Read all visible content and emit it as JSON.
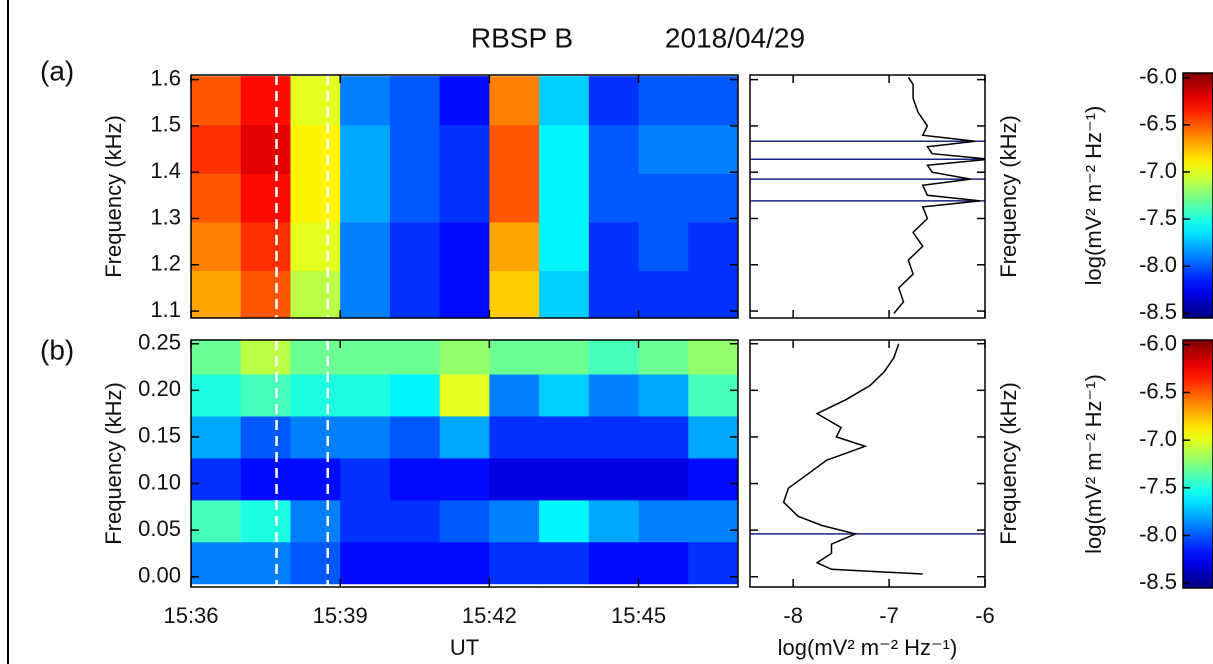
{
  "title": "RBSP B",
  "date": "2018/04/29",
  "chart_data": [
    {
      "type": "heatmap",
      "panel": "(a)",
      "ylabel": "Frequency (kHz)",
      "colormap": "jet",
      "x": [
        936.5,
        937.5,
        938.5,
        939.5,
        940.5,
        941.5,
        942.5,
        943.5,
        944.5,
        945.5,
        946.5
      ],
      "y": [
        1.135,
        1.24,
        1.345,
        1.45,
        1.555
      ],
      "z": [
        [
          -6.7,
          -6.5,
          -7.1,
          -7.9,
          -8.1,
          -8.2,
          -6.8,
          -7.7,
          -8.1,
          -8.1,
          -8.1
        ],
        [
          -6.6,
          -6.4,
          -7.0,
          -7.9,
          -8.1,
          -8.2,
          -6.7,
          -7.6,
          -8.1,
          -8.0,
          -8.1
        ],
        [
          -6.5,
          -6.3,
          -6.9,
          -7.8,
          -8.0,
          -8.1,
          -6.5,
          -7.6,
          -8.0,
          -8.0,
          -8.0
        ],
        [
          -6.4,
          -6.2,
          -6.9,
          -7.8,
          -8.0,
          -8.1,
          -6.5,
          -7.6,
          -8.0,
          -7.9,
          -7.9
        ],
        [
          -6.5,
          -6.3,
          -7.0,
          -7.9,
          -8.0,
          -8.2,
          -6.6,
          -7.7,
          -8.1,
          -8.0,
          -8.0
        ]
      ],
      "xlim": [
        936,
        947
      ],
      "ylim": [
        1.085,
        1.61
      ],
      "xticks": [
        {
          "value": 936,
          "label": "15:36"
        },
        {
          "value": 939,
          "label": "15:39"
        },
        {
          "value": 942,
          "label": "15:42"
        },
        {
          "value": 945,
          "label": "15:45"
        }
      ],
      "yticks": [
        1.1,
        1.2,
        1.3,
        1.4,
        1.5,
        1.6
      ],
      "show_xtick_labels": false,
      "vlines": [
        937.72,
        938.75
      ],
      "vline_color": "#ffffff",
      "colorbar": {
        "label": "log(mV² m⁻² Hz⁻¹)",
        "lim": [
          -8.55,
          -5.95
        ],
        "ticks": [
          {
            "value": -6,
            "label": "-6.0"
          },
          {
            "value": -6.5,
            "label": "-6.5"
          },
          {
            "value": -7,
            "label": "-7.0"
          },
          {
            "value": -7.5,
            "label": "-7.5"
          },
          {
            "value": -8,
            "label": "-8.0"
          },
          {
            "value": -8.5,
            "label": "-8.5"
          }
        ]
      }
    },
    {
      "type": "spectrum",
      "ylabel": "Frequency (kHz)",
      "color": "#000000",
      "hline_color": "#1a237e",
      "y": [
        1.095,
        1.12,
        1.15,
        1.18,
        1.21,
        1.24,
        1.27,
        1.3,
        1.325,
        1.338,
        1.35,
        1.372,
        1.385,
        1.4,
        1.415,
        1.428,
        1.44,
        1.455,
        1.467,
        1.48,
        1.5,
        1.53,
        1.56,
        1.59,
        1.605
      ],
      "values": [
        -6.95,
        -6.85,
        -6.9,
        -6.75,
        -6.8,
        -6.65,
        -6.75,
        -6.6,
        -6.65,
        -6.05,
        -6.6,
        -6.65,
        -6.15,
        -6.55,
        -6.6,
        -5.95,
        -6.55,
        -6.6,
        -6.1,
        -6.65,
        -6.6,
        -6.7,
        -6.75,
        -6.75,
        -6.8
      ],
      "hlines": [
        1.338,
        1.385,
        1.428,
        1.467
      ],
      "xlim": [
        -8.45,
        -6
      ],
      "ylim": [
        1.085,
        1.61
      ],
      "xticks": [
        -8,
        -7,
        -6
      ],
      "yticks": [
        1.1,
        1.2,
        1.3,
        1.4,
        1.5,
        1.6
      ],
      "show_xtick_labels": false
    },
    {
      "type": "heatmap",
      "panel": "(b)",
      "ylabel": "Frequency (kHz)",
      "xlabel": "UT",
      "colormap": "jet",
      "x": [
        936.5,
        937.5,
        938.5,
        939.5,
        940.5,
        941.5,
        942.5,
        943.5,
        944.5,
        945.5,
        946.5
      ],
      "y": [
        0.015,
        0.06,
        0.105,
        0.15,
        0.195,
        0.24
      ],
      "z": [
        [
          -7.9,
          -7.9,
          -8.0,
          -8.2,
          -8.2,
          -8.2,
          -8.1,
          -8.1,
          -8.2,
          -8.2,
          -8.1
        ],
        [
          -7.4,
          -7.5,
          -7.9,
          -8.1,
          -8.1,
          -8.0,
          -7.9,
          -7.6,
          -7.8,
          -7.9,
          -7.9
        ],
        [
          -8.1,
          -8.2,
          -8.2,
          -8.1,
          -8.2,
          -8.2,
          -8.3,
          -8.3,
          -8.3,
          -8.3,
          -8.2
        ],
        [
          -7.8,
          -8.0,
          -7.9,
          -7.9,
          -8.0,
          -7.8,
          -8.1,
          -8.1,
          -8.1,
          -8.1,
          -7.8
        ],
        [
          -7.5,
          -7.4,
          -7.5,
          -7.5,
          -7.6,
          -7.0,
          -7.9,
          -7.7,
          -7.9,
          -7.8,
          -7.4
        ],
        [
          -7.3,
          -7.1,
          -7.3,
          -7.3,
          -7.3,
          -7.2,
          -7.3,
          -7.3,
          -7.4,
          -7.3,
          -7.2
        ]
      ],
      "xlim": [
        936,
        947
      ],
      "ylim": [
        -0.011,
        0.254
      ],
      "xticks": [
        {
          "value": 936,
          "label": "15:36"
        },
        {
          "value": 939,
          "label": "15:39"
        },
        {
          "value": 942,
          "label": "15:42"
        },
        {
          "value": 945,
          "label": "15:45"
        }
      ],
      "yticks": [
        {
          "value": 0,
          "label": "0.00"
        },
        {
          "value": 0.05,
          "label": "0.05"
        },
        {
          "value": 0.1,
          "label": "0.10"
        },
        {
          "value": 0.15,
          "label": "0.15"
        },
        {
          "value": 0.2,
          "label": "0.20"
        },
        {
          "value": 0.25,
          "label": "0.25"
        }
      ],
      "show_xtick_labels": true,
      "vlines": [
        937.72,
        938.75
      ],
      "vline_color": "#ffffff",
      "colorbar": {
        "label": "log(mV² m⁻² Hz⁻¹)",
        "lim": [
          -8.55,
          -5.95
        ],
        "ticks": [
          {
            "value": -6,
            "label": "-6.0"
          },
          {
            "value": -6.5,
            "label": "-6.5"
          },
          {
            "value": -7,
            "label": "-7.0"
          },
          {
            "value": -7.5,
            "label": "-7.5"
          },
          {
            "value": -8,
            "label": "-8.0"
          },
          {
            "value": -8.5,
            "label": "-8.5"
          }
        ]
      }
    },
    {
      "type": "spectrum",
      "ylabel": "Frequency (kHz)",
      "xlabel": "log(mV² m⁻² Hz⁻¹)",
      "color": "#000000",
      "hline_color": "#1a237e",
      "y": [
        0.003,
        0.008,
        0.015,
        0.025,
        0.035,
        0.046,
        0.055,
        0.065,
        0.08,
        0.095,
        0.11,
        0.125,
        0.14,
        0.15,
        0.16,
        0.175,
        0.19,
        0.205,
        0.22,
        0.235,
        0.25
      ],
      "values": [
        -6.65,
        -7.6,
        -7.75,
        -7.6,
        -7.6,
        -7.35,
        -7.7,
        -7.95,
        -8.1,
        -8.05,
        -7.85,
        -7.65,
        -7.25,
        -7.55,
        -7.5,
        -7.75,
        -7.45,
        -7.2,
        -7.05,
        -6.95,
        -6.9
      ],
      "hlines": [
        0.046
      ],
      "xlim": [
        -8.45,
        -6
      ],
      "ylim": [
        -0.011,
        0.254
      ],
      "xticks": [
        -8,
        -7,
        -6
      ],
      "yticks": [
        {
          "value": 0,
          "label": "0.00"
        },
        {
          "value": 0.05,
          "label": "0.05"
        },
        {
          "value": 0.1,
          "label": "0.10"
        },
        {
          "value": 0.15,
          "label": "0.15"
        },
        {
          "value": 0.2,
          "label": "0.20"
        },
        {
          "value": 0.25,
          "label": "0.25"
        }
      ],
      "show_xtick_labels": true
    }
  ]
}
